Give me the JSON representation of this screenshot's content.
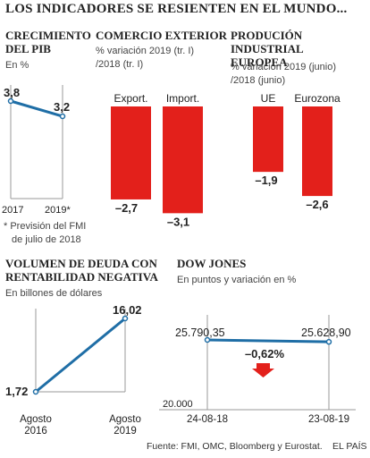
{
  "title": "LOS INDICADORES SE RESIENTEN EN EL MUNDO...",
  "pib": {
    "title_line1": "CRECIMIENTO",
    "title_line2": "DEL PIB",
    "unit": "En %",
    "note_line1": "* Previsión del FMI",
    "note_line2": "de julio de 2018"
  },
  "comercio": {
    "title": "COMERCIO EXTERIOR",
    "unit_line1": "% variación  2019 (tr. I)",
    "unit_line2": "/2018 (tr. I)"
  },
  "produccion": {
    "title_line1": "PRODUCIÓN INDUSTRIAL",
    "title_line2": "EUROPEA",
    "unit_line1": "% variación  2019 (junio)",
    "unit_line2": "/2018 (junio)"
  },
  "deuda": {
    "title_line1": "VOLUMEN DE DEUDA CON",
    "title_line2": "RENTABILIDAD NEGATIVA",
    "unit": "En billones de dólares"
  },
  "dow": {
    "title": "DOW JONES",
    "unit": "En puntos y variación en %",
    "change": "–0,62%",
    "baseline": "20.000"
  },
  "source": "Fuente: FMI, OMC, Bloomberg y Eurostat.",
  "brand": "EL PAÍS",
  "colors": {
    "red": "#e3201b",
    "blue": "#1f6ea6",
    "axis": "#9a9a9a"
  },
  "chart_data": [
    {
      "type": "line",
      "title": "CRECIMIENTO DEL PIB",
      "x": [
        "2017",
        "2019*"
      ],
      "values": [
        3.8,
        3.2
      ],
      "labels": [
        "3,8",
        "3,2"
      ]
    },
    {
      "type": "bar",
      "title": "COMERCIO EXTERIOR",
      "categories": [
        "Export.",
        "Import."
      ],
      "values": [
        -2.7,
        -3.1
      ],
      "labels": [
        "–2,7",
        "–3,1"
      ]
    },
    {
      "type": "bar",
      "title": "PRODUCIÓN INDUSTRIAL EUROPEA",
      "categories": [
        "UE",
        "Eurozona"
      ],
      "values": [
        -1.9,
        -2.6
      ],
      "labels": [
        "–1,9",
        "–2,6"
      ]
    },
    {
      "type": "line",
      "title": "VOLUMEN DE DEUDA CON RENTABILIDAD NEGATIVA",
      "x": [
        "Agosto 2016",
        "Agosto 2019"
      ],
      "x_line1": [
        "Agosto",
        "Agosto"
      ],
      "x_line2": [
        "2016",
        "2019"
      ],
      "values": [
        1.72,
        16.02
      ],
      "labels": [
        "1,72",
        "16,02"
      ]
    },
    {
      "type": "line",
      "title": "DOW JONES",
      "x": [
        "24-08-18",
        "23-08-19"
      ],
      "values": [
        25790.35,
        25628.9
      ],
      "labels": [
        "25.790,35",
        "25.628,90"
      ],
      "ylim": [
        20000,
        40000
      ]
    }
  ]
}
